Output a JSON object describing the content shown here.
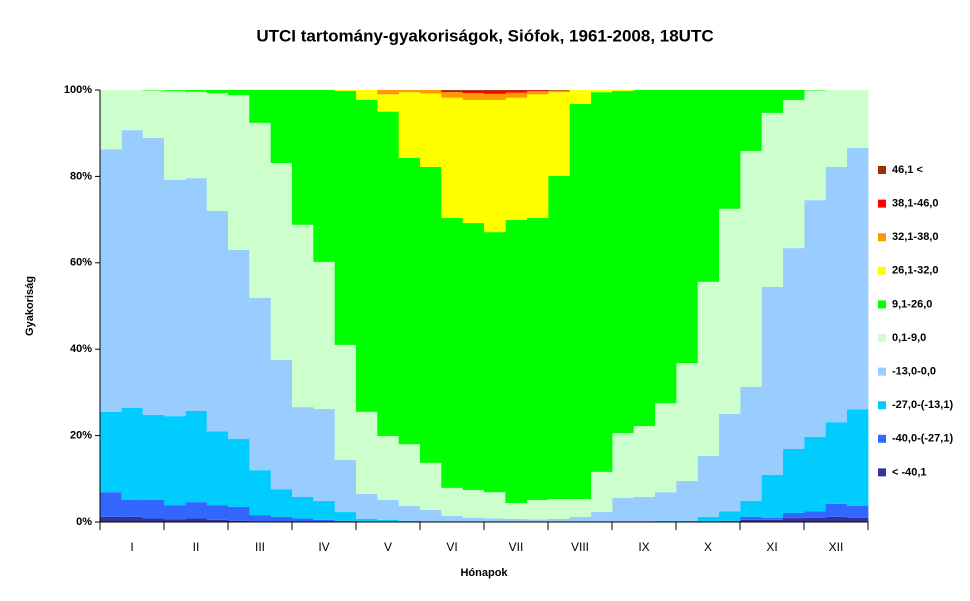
{
  "chart_data": {
    "type": "stacked_step_area",
    "title": "UTCI tartomány-gyakoriságok, Siófok, 1961-2008, 18UTC",
    "x_label": "Hónapok",
    "y_label": "Gyakoriság",
    "categories": [
      null,
      "I",
      null,
      null,
      "II",
      null,
      null,
      "III",
      null,
      null,
      "IV",
      null,
      null,
      "V",
      null,
      null,
      "VI",
      null,
      null,
      "VII",
      null,
      null,
      "VIII",
      null,
      null,
      "IX",
      null,
      null,
      "X",
      null,
      null,
      "XI",
      null,
      null,
      "XII",
      null
    ],
    "ylim": [
      0,
      100
    ],
    "yticks": [
      {
        "value": 0,
        "label": "0%"
      },
      {
        "value": 20,
        "label": "20%"
      },
      {
        "value": 40,
        "label": "40%"
      },
      {
        "value": 60,
        "label": "60%"
      },
      {
        "value": 80,
        "label": "80%"
      },
      {
        "value": 100,
        "label": "100%"
      }
    ],
    "legend": "right",
    "series": [
      {
        "name": "< -40,1",
        "color": "#333399",
        "values": [
          1.2,
          1.2,
          0.8,
          0.6,
          0.8,
          0.5,
          0.3,
          0.2,
          0.1,
          0,
          0,
          0,
          0,
          0,
          0,
          0,
          0,
          0,
          0,
          0,
          0,
          0,
          0,
          0,
          0,
          0,
          0,
          0,
          0,
          0,
          0.5,
          0.5,
          0.9,
          1.0,
          1.2,
          1.0
        ]
      },
      {
        "name": "-40,0-(-27,1)",
        "color": "#3366ff",
        "values": [
          5.7,
          3.9,
          4.3,
          3.3,
          3.8,
          3.4,
          3.2,
          1.4,
          1.1,
          0.8,
          0.5,
          0.3,
          0.1,
          0,
          0,
          0,
          0,
          0,
          0,
          0,
          0,
          0,
          0,
          0,
          0,
          0,
          0,
          0,
          0.2,
          0.3,
          0.7,
          0.5,
          1.2,
          1.5,
          3.0,
          2.7
        ]
      },
      {
        "name": "-27,0-(-13,1)",
        "color": "#00ccff",
        "values": [
          18.6,
          21.3,
          19.7,
          20.6,
          21.1,
          17.1,
          15.7,
          10.4,
          6.4,
          5.0,
          4.4,
          2.0,
          0.6,
          0.5,
          0.3,
          0.2,
          0.1,
          0.1,
          0,
          0,
          0,
          0,
          0.1,
          0.2,
          0.1,
          0.2,
          0.3,
          0.3,
          1.0,
          2.2,
          3.7,
          9.9,
          14.8,
          17.2,
          18.9,
          22.4
        ]
      },
      {
        "name": "-13,0-0,0",
        "color": "#99ccff",
        "values": [
          60.8,
          64.3,
          64.1,
          54.7,
          53.9,
          51.0,
          43.8,
          39.9,
          29.9,
          20.8,
          21.3,
          12.1,
          5.8,
          4.6,
          3.4,
          2.6,
          1.3,
          0.9,
          0.8,
          0.7,
          0.6,
          0.7,
          1.1,
          2.1,
          5.5,
          5.6,
          6.6,
          9.2,
          14.1,
          22.5,
          26.4,
          43.5,
          46.5,
          54.8,
          59.1,
          60.5
        ]
      },
      {
        "name": "0,1-9,0",
        "color": "#ccffcc",
        "values": [
          13.7,
          9.3,
          11.0,
          20.6,
          20.0,
          27.3,
          35.8,
          40.5,
          45.6,
          42.2,
          34.0,
          26.6,
          19.0,
          14.8,
          14.3,
          10.9,
          6.5,
          6.4,
          6.1,
          3.7,
          4.5,
          4.6,
          4.1,
          9.3,
          15.0,
          16.4,
          20.6,
          27.3,
          40.3,
          47.5,
          54.6,
          40.3,
          34.3,
          25.4,
          17.8,
          13.4
        ]
      },
      {
        "name": "9,1-26,0",
        "color": "#00ff00",
        "values": [
          0,
          0,
          0.1,
          0.2,
          0.4,
          0.7,
          1.2,
          7.6,
          16.9,
          31.2,
          39.8,
          58.8,
          72.2,
          75.1,
          66.3,
          68.5,
          62.5,
          61.8,
          60.2,
          65.5,
          65.3,
          74.8,
          91.5,
          87.9,
          79.2,
          77.8,
          72.5,
          63.2,
          44.4,
          27.5,
          14.1,
          5.3,
          2.3,
          0.1,
          0,
          0
        ]
      },
      {
        "name": "26,1-32,0",
        "color": "#ffff00",
        "values": [
          0,
          0,
          0,
          0,
          0,
          0,
          0,
          0,
          0,
          0,
          0,
          0.2,
          2.3,
          4.0,
          15.2,
          17.0,
          27.8,
          28.5,
          30.6,
          28.3,
          28.6,
          19.4,
          3.2,
          0.5,
          0.2,
          0,
          0,
          0,
          0,
          0,
          0,
          0,
          0,
          0,
          0,
          0
        ]
      },
      {
        "name": "32,1-38,0",
        "color": "#ff9900",
        "values": [
          0,
          0,
          0,
          0,
          0,
          0,
          0,
          0,
          0,
          0,
          0,
          0,
          0,
          1.0,
          0.5,
          0.8,
          1.3,
          1.6,
          1.4,
          1.2,
          0.7,
          0.4,
          0,
          0,
          0,
          0,
          0,
          0,
          0,
          0,
          0,
          0,
          0,
          0,
          0,
          0
        ]
      },
      {
        "name": "38,1-46,0",
        "color": "#ff0000",
        "values": [
          0,
          0,
          0,
          0,
          0,
          0,
          0,
          0,
          0,
          0,
          0,
          0,
          0,
          0,
          0,
          0,
          0.3,
          0.5,
          0.7,
          0.5,
          0.2,
          0,
          0,
          0,
          0,
          0,
          0,
          0,
          0,
          0,
          0,
          0,
          0,
          0,
          0,
          0
        ]
      },
      {
        "name": "46,1 <",
        "color": "#993300",
        "values": [
          0,
          0,
          0,
          0,
          0,
          0,
          0,
          0,
          0,
          0,
          0,
          0,
          0,
          0,
          0,
          0,
          0.2,
          0.2,
          0.2,
          0.1,
          0.1,
          0.1,
          0,
          0,
          0,
          0,
          0,
          0,
          0,
          0,
          0,
          0,
          0,
          0,
          0,
          0
        ]
      }
    ]
  }
}
